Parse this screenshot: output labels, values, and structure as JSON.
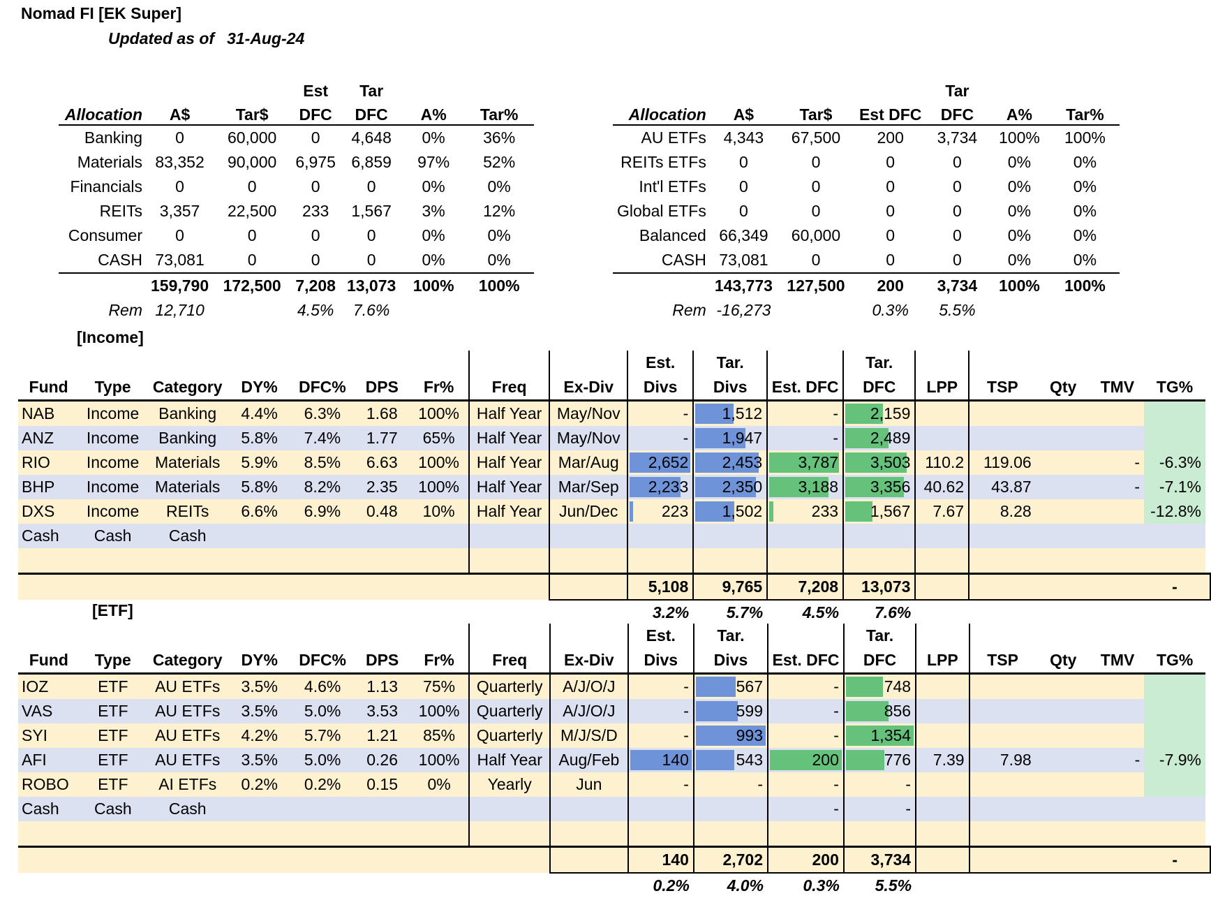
{
  "title": "Nomad FI [EK Super]",
  "updated_label": "Updated as of",
  "updated_date": "31-Aug-24",
  "alloc_left": {
    "header_top": [
      "",
      "",
      "",
      "Est",
      "Tar",
      "",
      ""
    ],
    "header": [
      "Allocation",
      "A$",
      "Tar$",
      "DFC",
      "DFC",
      "A%",
      "Tar%"
    ],
    "rows": [
      [
        "Banking",
        "0",
        "60,000",
        "0",
        "4,648",
        "0%",
        "36%"
      ],
      [
        "Materials",
        "83,352",
        "90,000",
        "6,975",
        "6,859",
        "97%",
        "52%"
      ],
      [
        "Financials",
        "0",
        "0",
        "0",
        "0",
        "0%",
        "0%"
      ],
      [
        "REITs",
        "3,357",
        "22,500",
        "233",
        "1,567",
        "3%",
        "12%"
      ],
      [
        "Consumer",
        "0",
        "0",
        "0",
        "0",
        "0%",
        "0%"
      ],
      [
        "CASH",
        "73,081",
        "0",
        "0",
        "0",
        "0%",
        "0%"
      ]
    ],
    "total": [
      "",
      "159,790",
      "172,500",
      "7,208",
      "13,073",
      "100%",
      "100%"
    ],
    "rem": [
      "Rem",
      "12,710",
      "",
      "4.5%",
      "7.6%",
      "",
      ""
    ]
  },
  "alloc_right": {
    "header_top": [
      "",
      "",
      "",
      "",
      "Tar",
      "",
      ""
    ],
    "header": [
      "Allocation",
      "A$",
      "Tar$",
      "Est DFC",
      "DFC",
      "A%",
      "Tar%"
    ],
    "rows": [
      [
        "AU ETFs",
        "4,343",
        "67,500",
        "200",
        "3,734",
        "100%",
        "100%"
      ],
      [
        "REITs ETFs",
        "0",
        "0",
        "0",
        "0",
        "0%",
        "0%"
      ],
      [
        "Int'l ETFs",
        "0",
        "0",
        "0",
        "0",
        "0%",
        "0%"
      ],
      [
        "Global ETFs",
        "0",
        "0",
        "0",
        "0",
        "0%",
        "0%"
      ],
      [
        "Balanced",
        "66,349",
        "60,000",
        "0",
        "0",
        "0%",
        "0%"
      ],
      [
        "CASH",
        "73,081",
        "0",
        "0",
        "0",
        "0%",
        "0%"
      ]
    ],
    "total": [
      "",
      "143,773",
      "127,500",
      "200",
      "3,734",
      "100%",
      "100%"
    ],
    "rem": [
      "Rem",
      "-16,273",
      "",
      "0.3%",
      "5.5%",
      "",
      ""
    ]
  },
  "income": {
    "label": "[Income]",
    "header_top": [
      "",
      "",
      "",
      "",
      "",
      "",
      "",
      "",
      "",
      "Est.",
      "Tar.",
      "",
      "Tar.",
      "",
      "",
      "",
      "",
      ""
    ],
    "header": [
      "Fund",
      "Type",
      "Category",
      "DY%",
      "DFC%",
      "DPS",
      "Fr%",
      "Freq",
      "Ex-Div",
      "Divs",
      "Divs",
      "Est. DFC",
      "DFC",
      "LPP",
      "TSP",
      "Qty",
      "TMV",
      "TG%"
    ],
    "rows": [
      [
        "NAB",
        "Income",
        "Banking",
        "4.4%",
        "6.3%",
        "1.68",
        "100%",
        "Half Year",
        "May/Nov",
        "-",
        "1,512",
        "-",
        "2,159",
        "",
        "",
        "",
        "",
        ""
      ],
      [
        "ANZ",
        "Income",
        "Banking",
        "5.8%",
        "7.4%",
        "1.77",
        "65%",
        "Half Year",
        "May/Nov",
        "-",
        "1,947",
        "-",
        "2,489",
        "",
        "",
        "",
        "",
        ""
      ],
      [
        "RIO",
        "Income",
        "Materials",
        "5.9%",
        "8.5%",
        "6.63",
        "100%",
        "Half Year",
        "Mar/Aug",
        "2,652",
        "2,453",
        "3,787",
        "3,503",
        "110.2",
        "119.06",
        "",
        "-",
        "-6.3%"
      ],
      [
        "BHP",
        "Income",
        "Materials",
        "5.8%",
        "8.2%",
        "2.35",
        "100%",
        "Half Year",
        "Mar/Sep",
        "2,233",
        "2,350",
        "3,188",
        "3,356",
        "40.62",
        "43.87",
        "",
        "-",
        "-7.1%"
      ],
      [
        "DXS",
        "Income",
        "REITs",
        "6.6%",
        "6.9%",
        "0.48",
        "10%",
        "Half Year",
        "Jun/Dec",
        "223",
        "1,502",
        "233",
        "1,567",
        "7.67",
        "8.28",
        "",
        "",
        "-12.8%"
      ],
      [
        "Cash",
        "Cash",
        "Cash",
        "",
        "",
        "",
        "",
        "",
        "",
        "",
        "",
        "",
        "",
        "",
        "",
        "",
        "",
        ""
      ],
      [
        "",
        "",
        "",
        "",
        "",
        "",
        "",
        "",
        "",
        "",
        "",
        "",
        "",
        "",
        "",
        "",
        "",
        ""
      ]
    ],
    "bars": [
      [
        0,
        0.55,
        0,
        0.55
      ],
      [
        0,
        0.72,
        0,
        0.64
      ],
      [
        0.98,
        0.91,
        0.97,
        0.9
      ],
      [
        0.83,
        0.87,
        0.82,
        0.86
      ],
      [
        0.06,
        0.56,
        0.06,
        0.4
      ]
    ],
    "total": [
      "5,108",
      "9,765",
      "7,208",
      "13,073",
      "-"
    ],
    "pct": [
      "3.2%",
      "5.7%",
      "4.5%",
      "7.6%"
    ]
  },
  "etf": {
    "label": "[ETF]",
    "header_top": [
      "",
      "",
      "",
      "",
      "",
      "",
      "",
      "",
      "",
      "Est.",
      "Tar.",
      "",
      "Tar.",
      "",
      "",
      "",
      "",
      ""
    ],
    "header": [
      "Fund",
      "Type",
      "Category",
      "DY%",
      "DFC%",
      "DPS",
      "Fr%",
      "Freq",
      "Ex-Div",
      "Divs",
      "Divs",
      "Est. DFC",
      "DFC",
      "LPP",
      "TSP",
      "Qty",
      "TMV",
      "TG%"
    ],
    "rows": [
      [
        "IOZ",
        "ETF",
        "AU ETFs",
        "3.5%",
        "4.6%",
        "1.13",
        "75%",
        "Quarterly",
        "A/J/O/J",
        "-",
        "567",
        "-",
        "748",
        "",
        "",
        "",
        "",
        ""
      ],
      [
        "VAS",
        "ETF",
        "AU ETFs",
        "3.5%",
        "5.0%",
        "3.53",
        "100%",
        "Quarterly",
        "A/J/O/J",
        "-",
        "599",
        "-",
        "856",
        "",
        "",
        "",
        "",
        ""
      ],
      [
        "SYI",
        "ETF",
        "AU ETFs",
        "4.2%",
        "5.7%",
        "1.21",
        "85%",
        "Quarterly",
        "M/J/S/D",
        "-",
        "993",
        "-",
        "1,354",
        "",
        "",
        "",
        "",
        ""
      ],
      [
        "AFI",
        "ETF",
        "AU ETFs",
        "3.5%",
        "5.0%",
        "0.26",
        "100%",
        "Half Year",
        "Aug/Feb",
        "140",
        "543",
        "200",
        "776",
        "7.39",
        "7.98",
        "",
        "-",
        "-7.9%"
      ],
      [
        "ROBO",
        "ETF",
        "AI ETFs",
        "0.2%",
        "0.2%",
        "0.15",
        "0%",
        "Yearly",
        "Jun",
        "-",
        "-",
        "-",
        "-",
        "",
        "",
        "",
        "",
        ""
      ],
      [
        "Cash",
        "Cash",
        "Cash",
        "",
        "",
        "",
        "",
        "",
        "",
        "",
        "",
        "-",
        "-",
        "",
        "",
        "",
        "",
        ""
      ],
      [
        "",
        "",
        "",
        "",
        "",
        "",
        "",
        "",
        "",
        "",
        "",
        "",
        "",
        "",
        "",
        "",
        "",
        ""
      ]
    ],
    "bars": [
      [
        0,
        0.57,
        0,
        0.55
      ],
      [
        0,
        0.6,
        0,
        0.63
      ],
      [
        0,
        1.0,
        0,
        1.0
      ],
      [
        1.0,
        0.55,
        1.0,
        0.57
      ],
      [
        0,
        0,
        0,
        0
      ]
    ],
    "total": [
      "140",
      "2,702",
      "200",
      "3,734",
      "-"
    ],
    "pct": [
      "0.2%",
      "4.0%",
      "0.3%",
      "5.5%"
    ]
  }
}
